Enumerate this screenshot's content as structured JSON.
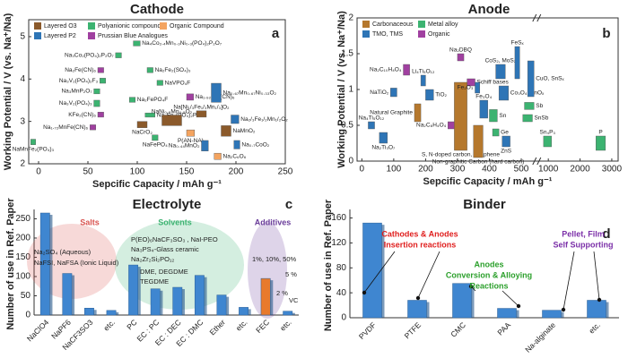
{
  "chart_data": [
    {
      "type": "range",
      "title": "Cathode",
      "panel_label": "a",
      "x_label": "Sepcific Capacity / mAh g⁻¹",
      "y_label": "Working Potential / V (vs. Na⁺/Na)",
      "xlim": [
        -10,
        250
      ],
      "xticks": [
        0,
        50,
        100,
        150,
        200,
        250
      ],
      "ylim": [
        2,
        5.4
      ],
      "yticks": [
        2,
        3,
        4,
        5
      ],
      "groups": [
        {
          "name": "Layered O3",
          "color": "#8b5a2b"
        },
        {
          "name": "Polyanionic compounds",
          "color": "#3cb371"
        },
        {
          "name": "Organic Compound",
          "color": "#f4a460"
        },
        {
          "name": "Layered P2",
          "color": "#2e75b6"
        },
        {
          "name": "Prussian Blue Analogues",
          "color": "#a040a0"
        }
      ],
      "items": [
        {
          "label": "NaMnFe₂(PO₄)₃",
          "group": "Polyanionic compounds",
          "x": [
            -8,
            -3
          ],
          "y": [
            2.45,
            2.58
          ]
        },
        {
          "label": "Na₃Co₂(PO₄)₂P₂O₇",
          "group": "Polyanionic compounds",
          "x": [
            78,
            84
          ],
          "y": [
            4.5,
            4.62
          ]
        },
        {
          "label": "Na₄Co₂.₄Mn₀.₃Ni₀.₃(PO₄)₂P₂O₇",
          "group": "Polyanionic compounds",
          "x": [
            96,
            103
          ],
          "y": [
            4.78,
            4.9
          ]
        },
        {
          "label": "Na₂Fe(CN)₆",
          "group": "Prussian Blue Analogues",
          "x": [
            60,
            66
          ],
          "y": [
            4.15,
            4.27
          ]
        },
        {
          "label": "Na₂Fe₂(SO₄)₃",
          "group": "Polyanionic compounds",
          "x": [
            110,
            116
          ],
          "y": [
            4.15,
            4.27
          ]
        },
        {
          "label": "Na₃V₂(PO₄)₂F₃",
          "group": "Polyanionic compounds",
          "x": [
            62,
            68
          ],
          "y": [
            3.9,
            4.02
          ]
        },
        {
          "label": "Na₃MnP₂O₇",
          "group": "Polyanionic compounds",
          "x": [
            56,
            62
          ],
          "y": [
            3.65,
            3.77
          ]
        },
        {
          "label": "Na₃V₂(PO₄)₃",
          "group": "Polyanionic compounds",
          "x": [
            56,
            62
          ],
          "y": [
            3.35,
            3.5
          ]
        },
        {
          "label": "KFe₂(CN)₆",
          "group": "Prussian Blue Analogues",
          "x": [
            60,
            66
          ],
          "y": [
            3.1,
            3.22
          ]
        },
        {
          "label": "Na₁.₇₂MnFe(CN)₆",
          "group": "Prussian Blue Analogues",
          "x": [
            52,
            58
          ],
          "y": [
            2.8,
            2.92
          ]
        },
        {
          "label": "Na₂FePO₄F",
          "group": "Polyanionic compounds",
          "x": [
            92,
            98
          ],
          "y": [
            3.45,
            3.57
          ]
        },
        {
          "label": "NaVPO₄F",
          "group": "Polyanionic compounds",
          "x": [
            120,
            126
          ],
          "y": [
            3.85,
            3.97
          ]
        },
        {
          "label": "Na₄Fe₃(PO₄)₂P₂O₇",
          "group": "Polyanionic compounds",
          "x": [
            108,
            118
          ],
          "y": [
            3.1,
            3.2
          ]
        },
        {
          "label": "NaCrO₂",
          "group": "Layered O3",
          "x": [
            100,
            110
          ],
          "y": [
            2.85,
            3.0
          ]
        },
        {
          "label": "NaFePO₄",
          "group": "Polyanionic compounds",
          "x": [
            115,
            121
          ],
          "y": [
            2.55,
            2.68
          ]
        },
        {
          "label": "Na₁.₉₂Fe₂(CN)₆",
          "group": "Prussian Blue Analogues",
          "x": [
            150,
            157
          ],
          "y": [
            3.5,
            3.65
          ]
        },
        {
          "label": "P(AN-NA)",
          "group": "Organic Compound",
          "x": [
            150,
            158
          ],
          "y": [
            2.65,
            2.8
          ]
        },
        {
          "label": "Na₂C₆O₆",
          "group": "Organic Compound",
          "x": [
            178,
            185
          ],
          "y": [
            2.1,
            2.25
          ]
        },
        {
          "label": "NaNi₀.₅Mn₀.₅O₂",
          "group": "Layered O3",
          "x": [
            125,
            145
          ],
          "y": [
            2.9,
            3.15
          ]
        },
        {
          "label": "Na₀.₆₇Mn₀.₆₇Ni₀.₃₃O₂",
          "group": "Layered P2",
          "x": [
            175,
            185
          ],
          "y": [
            3.45,
            3.9
          ]
        },
        {
          "label": "NaMnO₂",
          "group": "Layered O3",
          "x": [
            185,
            195
          ],
          "y": [
            2.65,
            2.9
          ]
        },
        {
          "label": "Na₂/₃Fe₁/₂Mn₁/₂O₂",
          "group": "Layered P2",
          "x": [
            195,
            203
          ],
          "y": [
            2.95,
            3.15
          ]
        },
        {
          "label": "Na₀.₄₄MnO₂",
          "group": "Layered P2",
          "x": [
            165,
            172
          ],
          "y": [
            2.3,
            2.55
          ]
        },
        {
          "label": "Na₀.₇CoO₂",
          "group": "Layered P2",
          "x": [
            198,
            204
          ],
          "y": [
            2.35,
            2.55
          ]
        },
        {
          "label": "Na[Ni₁/₃Fe₁/₃Mn₁/₃]O₂",
          "group": "Layered O3",
          "x": [
            160,
            170
          ],
          "y": [
            3.1,
            3.25
          ]
        }
      ]
    },
    {
      "type": "range",
      "title": "Anode",
      "panel_label": "b",
      "x_label": "Sepcific Capacity / mAh g⁻¹",
      "y_label": "Working Potential / V (vs. Na⁺/Na)",
      "xlim": [
        -15,
        3200
      ],
      "xbreak": [
        550,
        650
      ],
      "xticks": [
        0,
        100,
        200,
        300,
        400,
        500,
        1000,
        2000,
        3000
      ],
      "ylim": [
        0,
        2
      ],
      "yticks": [
        0,
        0.5,
        1,
        1.5,
        2
      ],
      "groups": [
        {
          "name": "Carbonaceous",
          "color": "#b5782d"
        },
        {
          "name": "Metal alloy",
          "color": "#3cb371"
        },
        {
          "name": "TMO, TMS",
          "color": "#2e75b6"
        },
        {
          "name": "Organic",
          "color": "#a040a0"
        }
      ],
      "items": [
        {
          "label": "Na₂C₁₀H₄O₄",
          "group": "Organic",
          "x": [
            130,
            150
          ],
          "y": [
            1.2,
            1.35
          ]
        },
        {
          "label": "NaTiO₂",
          "group": "TMO, TMS",
          "x": [
            90,
            110
          ],
          "y": [
            0.9,
            1.02
          ]
        },
        {
          "label": "Li₄Ti₅O₁₂",
          "group": "TMO, TMS",
          "x": [
            185,
            200
          ],
          "y": [
            1.05,
            1.2
          ]
        },
        {
          "label": "TiO₂",
          "group": "TMO, TMS",
          "x": [
            200,
            225
          ],
          "y": [
            0.85,
            1.0
          ]
        },
        {
          "label": "Natural Graphite",
          "group": "Carbonaceous",
          "x": [
            165,
            185
          ],
          "y": [
            0.55,
            0.8
          ]
        },
        {
          "label": "Na₂Ti₃O₇",
          "group": "TMO, TMS",
          "x": [
            55,
            80
          ],
          "y": [
            0.25,
            0.4
          ]
        },
        {
          "label": "Na₄Ti₅O₁₂",
          "group": "TMO, TMS",
          "x": [
            20,
            40
          ],
          "y": [
            0.45,
            0.55
          ]
        },
        {
          "label": "Na₂DBQ",
          "group": "Organic",
          "x": [
            300,
            320
          ],
          "y": [
            1.4,
            1.5
          ]
        },
        {
          "label": "Schiff bases",
          "group": "Organic",
          "x": [
            330,
            355
          ],
          "y": [
            1.05,
            1.15
          ]
        },
        {
          "label": "Na₂C₈H₄O₄",
          "group": "Organic",
          "x": [
            270,
            300
          ],
          "y": [
            0.45,
            0.55
          ]
        },
        {
          "label": "S, N-doped carbon, Graphene",
          "group": "Carbonaceous",
          "x": [
            290,
            330
          ],
          "y": [
            0.15,
            1.1
          ]
        },
        {
          "label": "Non-graphitic Carbon (hard carbon)",
          "group": "Carbonaceous",
          "x": [
            350,
            380
          ],
          "y": [
            0.05,
            0.5
          ]
        },
        {
          "label": "Fe₃O₄",
          "group": "TMO, TMS",
          "x": [
            370,
            395
          ],
          "y": [
            0.6,
            0.85
          ]
        },
        {
          "label": "Fe₂O₃",
          "group": "TMO, TMS",
          "x": [
            355,
            370
          ],
          "y": [
            0.95,
            1.1
          ]
        },
        {
          "label": "CoS₂, MoS₂",
          "group": "TMO, TMS",
          "x": [
            420,
            450
          ],
          "y": [
            1.15,
            1.35
          ]
        },
        {
          "label": "Co₃O₄, SnOₓ",
          "group": "TMO, TMS",
          "x": [
            430,
            460
          ],
          "y": [
            0.85,
            1.05
          ]
        },
        {
          "label": "FeSₓ",
          "group": "TMO, TMS",
          "x": [
            480,
            495
          ],
          "y": [
            1.15,
            1.6
          ]
        },
        {
          "label": "CuO, SnSₓ",
          "group": "TMO, TMS",
          "x": [
            520,
            540
          ],
          "y": [
            0.9,
            1.4
          ]
        },
        {
          "label": "Sn",
          "group": "Metal alloy",
          "x": [
            400,
            425
          ],
          "y": [
            0.55,
            0.72
          ]
        },
        {
          "label": "Ge",
          "group": "Metal alloy",
          "x": [
            410,
            430
          ],
          "y": [
            0.35,
            0.45
          ]
        },
        {
          "label": "ZnS",
          "group": "TMO, TMS",
          "x": [
            440,
            465
          ],
          "y": [
            0.2,
            0.35
          ]
        },
        {
          "label": "Sb",
          "group": "Metal alloy",
          "x": [
            510,
            540
          ],
          "y": [
            0.72,
            0.82
          ]
        },
        {
          "label": "SnSb",
          "group": "Metal alloy",
          "x": [
            505,
            535
          ],
          "y": [
            0.55,
            0.65
          ]
        },
        {
          "label": "Sn₄P₃",
          "group": "Metal alloy",
          "x": [
            850,
            1100
          ],
          "y": [
            0.2,
            0.35
          ]
        },
        {
          "label": "P",
          "group": "Metal alloy",
          "x": [
            2500,
            2800
          ],
          "y": [
            0.15,
            0.35
          ]
        }
      ]
    },
    {
      "type": "bar",
      "title": "Electrolyte",
      "panel_label": "c",
      "y_label": "Number of use in Ref. Paper",
      "categories": [
        "NaClO4",
        "NaPF6",
        "NaCF3SO3",
        "etc.",
        "PC",
        "EC : PC",
        "EC : DEC",
        "EC : DMC",
        "Ether",
        "etc.",
        "FEC",
        "etc."
      ],
      "values": [
        265,
        108,
        18,
        12,
        130,
        68,
        72,
        103,
        52,
        20,
        95,
        10
      ],
      "colors": [
        "#3f86d0",
        "#3f86d0",
        "#3f86d0",
        "#3f86d0",
        "#3f86d0",
        "#3f86d0",
        "#3f86d0",
        "#3f86d0",
        "#3f86d0",
        "#3f86d0",
        "#e87a2c",
        "#3f86d0"
      ],
      "ylim": [
        0,
        265
      ],
      "yticks": [
        0,
        50,
        100,
        150,
        200,
        250
      ],
      "groups": [
        {
          "name": "Salts",
          "color": "#d9534f"
        },
        {
          "name": "Solvents",
          "color": "#3cb371"
        },
        {
          "name": "Additives",
          "color": "#6a3d9a"
        }
      ],
      "annotations": [
        "Na₂SO₄ (Aqueous)",
        "NaFSI, NaFSA (Ionic Liquid)",
        "P(EO)₆NaCF₃SO₃ , NaI-PEO",
        "Na₃PS₄-Glass ceramic",
        "Na₂Zr₂Si₂PO₁₂",
        "DME, DEGDME",
        "TEGDME",
        "1%, 10%, 50%",
        "5 %",
        "2 %",
        "VC"
      ]
    },
    {
      "type": "bar",
      "title": "Binder",
      "panel_label": "d",
      "y_label": "Number of use in Ref. Paper",
      "categories": [
        "PVDF",
        "PTFE",
        "CMC",
        "PAA",
        "Na-alginate",
        "etc."
      ],
      "values": [
        152,
        28,
        55,
        15,
        12,
        28
      ],
      "color": "#3f86d0",
      "ylim": [
        0,
        168
      ],
      "yticks": [
        0,
        40,
        80,
        120,
        160
      ],
      "annotations": [
        {
          "text": "Cathodes & Anodes",
          "color": "#e0201f"
        },
        {
          "text": "Insertion reactions",
          "color": "#e0201f"
        },
        {
          "text": "Anodes",
          "color": "#2ca02c"
        },
        {
          "text": "Conversion & Alloying",
          "color": "#2ca02c"
        },
        {
          "text": "Reactions",
          "color": "#2ca02c"
        },
        {
          "text": "Pellet, Film",
          "color": "#7b2fa8"
        },
        {
          "text": "Self Supporting",
          "color": "#7b2fa8"
        }
      ]
    }
  ]
}
